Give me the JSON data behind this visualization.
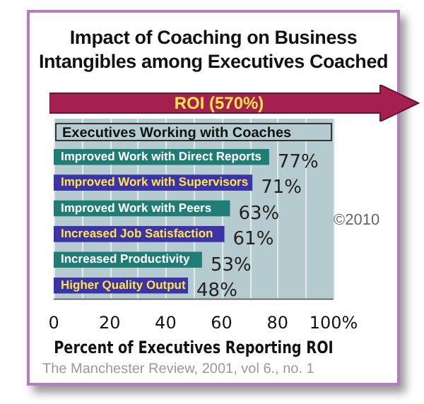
{
  "chart_data": {
    "type": "bar",
    "orientation": "horizontal",
    "title": "Impact of Coaching on Business Intangibles among Executives Coached",
    "xlabel": "Percent of Executives Reporting ROI",
    "categories": [
      "Improved Work with Direct Reports",
      "Improved Work with Supervisors",
      "Improved Work with Peers",
      "Increased Job Satisfaction",
      "Increased Productivity",
      "Higher Quality Output"
    ],
    "values": [
      77,
      71,
      63,
      61,
      53,
      48
    ],
    "colors": [
      "#1f7d75",
      "#3a34a8",
      "#1f7d75",
      "#3a34a8",
      "#1f7d75",
      "#3a34a8"
    ],
    "value_labels": [
      "77%",
      "71%",
      "63%",
      "61%",
      "53%",
      "48%"
    ],
    "xlim": [
      0,
      100
    ],
    "xticks": [
      0,
      {
        "value": 10,
        "label": null
      },
      20,
      {
        "value": 30,
        "label": null
      },
      40,
      {
        "value": 50,
        "label": null
      },
      60,
      {
        "value": 70,
        "label": null
      },
      80,
      {
        "value": 90,
        "label": null
      },
      {
        "value": 100,
        "label": "100%"
      }
    ],
    "grid": "x",
    "tick_labels": "x",
    "legend": false,
    "annotations": [
      "ROI (570%)",
      "Executives Working with Coaches",
      "©2010",
      "The Manchester Review, 2001, vol 6., no. 1"
    ]
  }
}
